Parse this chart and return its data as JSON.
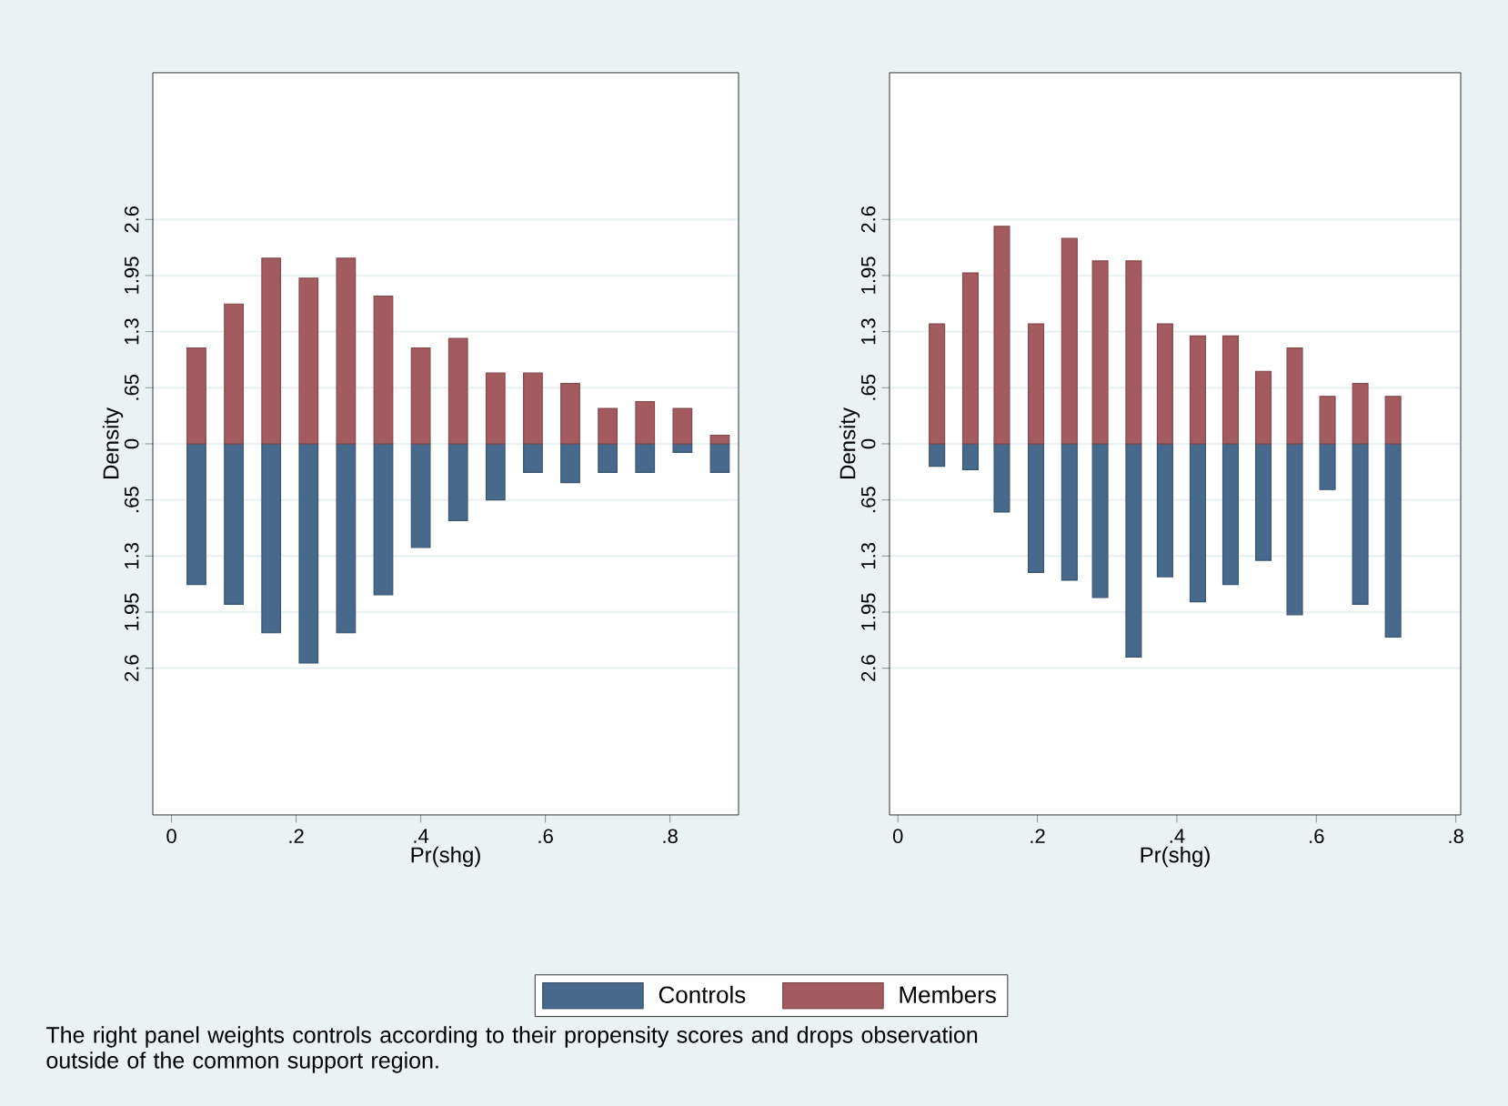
{
  "chart_data": [
    {
      "type": "bar",
      "xlabel": "Pr(shg)",
      "ylabel": "Density",
      "x": [
        0.04,
        0.1,
        0.16,
        0.22,
        0.28,
        0.34,
        0.4,
        0.46,
        0.52,
        0.58,
        0.64,
        0.7,
        0.76,
        0.82,
        0.88
      ],
      "series": [
        {
          "name": "Controls",
          "color": "#476a8c",
          "values": [
            -1.63,
            -1.86,
            -2.19,
            -2.54,
            -2.19,
            -1.75,
            -1.2,
            -0.89,
            -0.65,
            -0.33,
            -0.45,
            -0.33,
            -0.33,
            -0.1,
            -0.33
          ]
        },
        {
          "name": "Members",
          "color": "#a45b60",
          "values": [
            1.11,
            1.62,
            2.15,
            1.92,
            2.15,
            1.71,
            1.11,
            1.22,
            0.82,
            0.82,
            0.7,
            0.41,
            0.49,
            0.41,
            0.1
          ]
        }
      ],
      "xlim": [
        -0.03,
        0.91
      ],
      "ylim": [
        -4.3,
        4.3
      ],
      "xticks": [
        0,
        {
          "value": 0.2,
          "label": ".2"
        },
        {
          "value": 0.4,
          "label": ".4"
        },
        {
          "value": 0.6,
          "label": ".6"
        },
        {
          "value": 0.8,
          "label": ".8"
        }
      ],
      "yticks": [
        {
          "value": -2.6,
          "label": "2.6"
        },
        {
          "value": -1.95,
          "label": "1.95"
        },
        {
          "value": -1.3,
          "label": "1.3"
        },
        {
          "value": -0.65,
          "label": ".65"
        },
        0,
        {
          "value": 0.65,
          "label": ".65"
        },
        {
          "value": 1.3,
          "label": "1.3"
        },
        {
          "value": 1.95,
          "label": "1.95"
        },
        {
          "value": 2.6,
          "label": "2.6"
        }
      ],
      "grid": "y",
      "legend": "bottom",
      "stacked": true,
      "annotations": [
        "The right panel weights controls according to their propensity scores and drops observation outside of the common support region."
      ]
    },
    {
      "type": "bar",
      "xlabel": "Pr(shg)",
      "ylabel": "Density",
      "x": [
        0.056,
        0.104,
        0.149,
        0.198,
        0.246,
        0.29,
        0.338,
        0.383,
        0.43,
        0.477,
        0.524,
        0.569,
        0.616,
        0.663,
        0.71
      ],
      "series": [
        {
          "color": "#476a8c",
          "values": [
            -0.26,
            -0.3,
            -0.79,
            -1.49,
            -1.58,
            -1.78,
            -2.47,
            -1.54,
            -1.83,
            -1.63,
            -1.35,
            -1.98,
            -0.53,
            -1.86,
            -2.24
          ]
        },
        {
          "color": "#a45b60",
          "values": [
            1.39,
            1.98,
            2.52,
            1.39,
            2.38,
            2.12,
            2.12,
            1.39,
            1.25,
            1.25,
            0.84,
            1.11,
            0.55,
            0.7,
            0.55
          ]
        }
      ],
      "xlim": [
        -0.012,
        0.807
      ],
      "ylim": [
        -4.3,
        4.3
      ],
      "xticks": [
        0,
        {
          "value": 0.2,
          "label": ".2"
        },
        {
          "value": 0.4,
          "label": ".4"
        },
        {
          "value": 0.6,
          "label": ".6"
        },
        {
          "value": 0.8,
          "label": ".8"
        }
      ],
      "yticks": [
        {
          "value": -2.6,
          "label": "2.6"
        },
        {
          "value": -1.95,
          "label": "1.95"
        },
        {
          "value": -1.3,
          "label": "1.3"
        },
        {
          "value": -0.65,
          "label": ".65"
        },
        0,
        {
          "value": 0.65,
          "label": ".65"
        },
        {
          "value": 1.3,
          "label": "1.3"
        },
        {
          "value": 1.95,
          "label": "1.95"
        },
        {
          "value": 2.6,
          "label": "2.6"
        }
      ],
      "grid": "y",
      "stacked": true
    }
  ]
}
